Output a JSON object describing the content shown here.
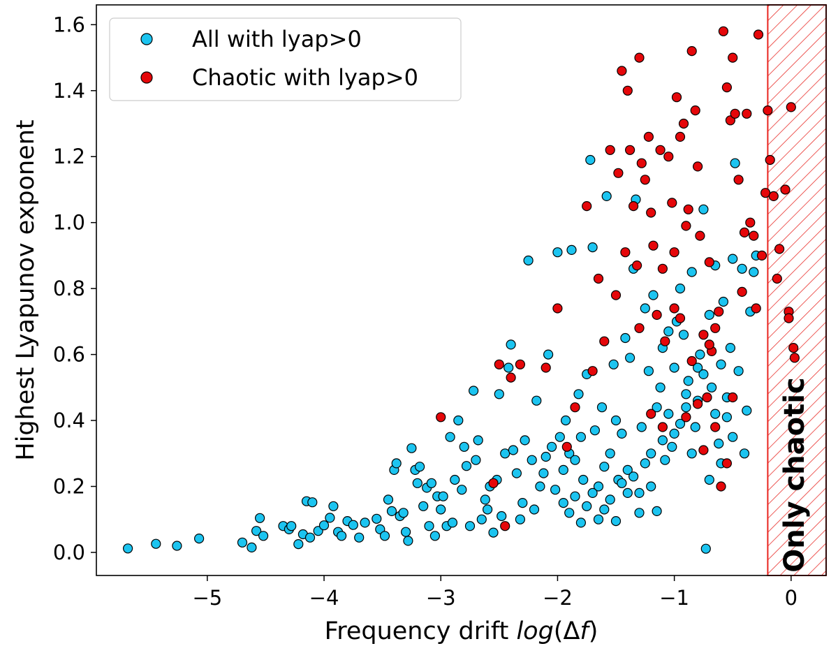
{
  "chart_data": {
    "type": "scatter",
    "xlabel_prefix": "Frequency drift ",
    "xlabel_math_italic": "log",
    "xlabel_math_rest": "(Δ",
    "xlabel_math_italic2": "f",
    "xlabel_math_close": ")",
    "ylabel": "Highest Lyapunov exponent",
    "xlim": [
      -5.95,
      0.3
    ],
    "ylim": [
      -0.07,
      1.66
    ],
    "grid": false,
    "legend_position": "top-left",
    "x_ticks": [
      {
        "value": -5,
        "label": "−5"
      },
      {
        "value": -4,
        "label": "−4"
      },
      {
        "value": -3,
        "label": "−3"
      },
      {
        "value": -2,
        "label": "−2"
      },
      {
        "value": -1,
        "label": "−1"
      },
      {
        "value": 0,
        "label": "0"
      }
    ],
    "y_ticks": [
      {
        "value": 0.0,
        "label": "0.0"
      },
      {
        "value": 0.2,
        "label": "0.2"
      },
      {
        "value": 0.4,
        "label": "0.4"
      },
      {
        "value": 0.6,
        "label": "0.6"
      },
      {
        "value": 0.8,
        "label": "0.8"
      },
      {
        "value": 1.0,
        "label": "1.0"
      },
      {
        "value": 1.2,
        "label": "1.2"
      },
      {
        "value": 1.4,
        "label": "1.4"
      },
      {
        "value": 1.6,
        "label": "1.6"
      }
    ],
    "shaded_region": {
      "label": "Only chaotic",
      "x_from": -0.2,
      "x_to": 0.3,
      "color": "#e8241f",
      "hatch": "diagonal"
    },
    "series": [
      {
        "name": "All with lyap>0",
        "color": "#1cc4f0",
        "points": [
          [
            -5.68,
            0.012
          ],
          [
            -5.44,
            0.026
          ],
          [
            -5.26,
            0.02
          ],
          [
            -5.07,
            0.042
          ],
          [
            -4.7,
            0.03
          ],
          [
            -4.62,
            0.015
          ],
          [
            -4.58,
            0.065
          ],
          [
            -4.55,
            0.104
          ],
          [
            -4.52,
            0.05
          ],
          [
            -4.35,
            0.08
          ],
          [
            -4.3,
            0.07
          ],
          [
            -4.28,
            0.08
          ],
          [
            -4.22,
            0.025
          ],
          [
            -4.18,
            0.055
          ],
          [
            -4.15,
            0.155
          ],
          [
            -4.12,
            0.045
          ],
          [
            -4.1,
            0.152
          ],
          [
            -4.05,
            0.065
          ],
          [
            -4.0,
            0.082
          ],
          [
            -3.95,
            0.105
          ],
          [
            -3.92,
            0.14
          ],
          [
            -3.88,
            0.062
          ],
          [
            -3.85,
            0.05
          ],
          [
            -3.8,
            0.095
          ],
          [
            -3.75,
            0.083
          ],
          [
            -3.7,
            0.045
          ],
          [
            -3.65,
            0.09
          ],
          [
            -3.55,
            0.102
          ],
          [
            -3.52,
            0.07
          ],
          [
            -3.48,
            0.05
          ],
          [
            -3.45,
            0.16
          ],
          [
            -3.42,
            0.125
          ],
          [
            -3.4,
            0.25
          ],
          [
            -3.38,
            0.27
          ],
          [
            -3.35,
            0.11
          ],
          [
            -3.32,
            0.12
          ],
          [
            -3.3,
            0.062
          ],
          [
            -3.28,
            0.035
          ],
          [
            -3.25,
            0.316
          ],
          [
            -3.22,
            0.25
          ],
          [
            -3.2,
            0.21
          ],
          [
            -3.18,
            0.26
          ],
          [
            -3.15,
            0.14
          ],
          [
            -3.12,
            0.196
          ],
          [
            -3.1,
            0.08
          ],
          [
            -3.08,
            0.21
          ],
          [
            -3.05,
            0.05
          ],
          [
            -3.03,
            0.17
          ],
          [
            -3.0,
            0.13
          ],
          [
            -2.98,
            0.17
          ],
          [
            -2.95,
            0.08
          ],
          [
            -2.92,
            0.35
          ],
          [
            -2.9,
            0.09
          ],
          [
            -2.88,
            0.22
          ],
          [
            -2.85,
            0.4
          ],
          [
            -2.82,
            0.19
          ],
          [
            -2.8,
            0.32
          ],
          [
            -2.78,
            0.262
          ],
          [
            -2.75,
            0.08
          ],
          [
            -2.72,
            0.49
          ],
          [
            -2.7,
            0.28
          ],
          [
            -2.68,
            0.34
          ],
          [
            -2.65,
            0.1
          ],
          [
            -2.62,
            0.16
          ],
          [
            -2.6,
            0.13
          ],
          [
            -2.58,
            0.2
          ],
          [
            -2.55,
            0.06
          ],
          [
            -2.52,
            0.22
          ],
          [
            -2.5,
            0.48
          ],
          [
            -2.48,
            0.11
          ],
          [
            -2.45,
            0.3
          ],
          [
            -2.42,
            0.56
          ],
          [
            -2.4,
            0.63
          ],
          [
            -2.38,
            0.31
          ],
          [
            -2.35,
            0.24
          ],
          [
            -2.32,
            0.1
          ],
          [
            -2.3,
            0.15
          ],
          [
            -2.28,
            0.34
          ],
          [
            -2.25,
            0.885
          ],
          [
            -2.22,
            0.28
          ],
          [
            -2.2,
            0.13
          ],
          [
            -2.18,
            0.46
          ],
          [
            -2.15,
            0.2
          ],
          [
            -2.12,
            0.24
          ],
          [
            -2.1,
            0.29
          ],
          [
            -2.08,
            0.6
          ],
          [
            -2.05,
            0.32
          ],
          [
            -2.02,
            0.19
          ],
          [
            -2.0,
            0.91
          ],
          [
            -1.98,
            0.35
          ],
          [
            -1.95,
            0.25
          ],
          [
            -1.93,
            0.4
          ],
          [
            -1.9,
            0.3
          ],
          [
            -1.88,
            0.917
          ],
          [
            -1.85,
            0.28
          ],
          [
            -1.82,
            0.48
          ],
          [
            -1.8,
            0.35
          ],
          [
            -1.78,
            0.22
          ],
          [
            -1.75,
            0.54
          ],
          [
            -1.72,
            1.19
          ],
          [
            -1.7,
            0.925
          ],
          [
            -1.68,
            0.37
          ],
          [
            -1.65,
            0.2
          ],
          [
            -1.62,
            0.44
          ],
          [
            -1.6,
            0.26
          ],
          [
            -1.58,
            1.08
          ],
          [
            -1.55,
            0.3
          ],
          [
            -1.52,
            0.57
          ],
          [
            -1.5,
            0.4
          ],
          [
            -1.48,
            0.22
          ],
          [
            -1.45,
            0.36
          ],
          [
            -1.42,
            0.65
          ],
          [
            -1.4,
            0.25
          ],
          [
            -1.38,
            0.59
          ],
          [
            -1.35,
            0.86
          ],
          [
            -1.33,
            1.07
          ],
          [
            -1.3,
            0.18
          ],
          [
            -1.28,
            0.38
          ],
          [
            -1.25,
            0.74
          ],
          [
            -1.22,
            0.55
          ],
          [
            -1.2,
            0.3
          ],
          [
            -1.18,
            0.78
          ],
          [
            -1.15,
            0.44
          ],
          [
            -1.12,
            0.5
          ],
          [
            -1.1,
            0.62
          ],
          [
            -1.08,
            0.28
          ],
          [
            -1.05,
            0.67
          ],
          [
            -1.02,
            0.32
          ],
          [
            -1.0,
            0.56
          ],
          [
            -0.98,
            0.7
          ],
          [
            -0.95,
            0.8
          ],
          [
            -0.92,
            0.66
          ],
          [
            -0.9,
            0.44
          ],
          [
            -0.88,
            0.52
          ],
          [
            -0.85,
            0.85
          ],
          [
            -0.82,
            0.38
          ],
          [
            -0.8,
            0.46
          ],
          [
            -0.78,
            0.6
          ],
          [
            -0.75,
            1.04
          ],
          [
            -0.73,
            0.011
          ],
          [
            -0.7,
            0.72
          ],
          [
            -0.68,
            0.5
          ],
          [
            -0.65,
            0.87
          ],
          [
            -0.62,
            0.33
          ],
          [
            -0.6,
            0.57
          ],
          [
            -0.58,
            0.76
          ],
          [
            -0.55,
            0.41
          ],
          [
            -0.52,
            0.62
          ],
          [
            -0.5,
            0.89
          ],
          [
            -0.48,
            1.18
          ],
          [
            -0.45,
            0.55
          ],
          [
            -0.42,
            0.86
          ],
          [
            -0.4,
            0.3
          ],
          [
            -0.38,
            0.43
          ],
          [
            -0.35,
            0.73
          ],
          [
            -0.32,
            0.85
          ],
          [
            -0.3,
            0.9
          ],
          [
            -1.95,
            0.15
          ],
          [
            -1.9,
            0.12
          ],
          [
            -1.85,
            0.17
          ],
          [
            -1.8,
            0.09
          ],
          [
            -1.75,
            0.14
          ],
          [
            -1.7,
            0.18
          ],
          [
            -1.65,
            0.1
          ],
          [
            -1.6,
            0.13
          ],
          [
            -1.55,
            0.16
          ],
          [
            -1.5,
            0.095
          ],
          [
            -1.45,
            0.21
          ],
          [
            -1.4,
            0.18
          ],
          [
            -1.35,
            0.23
          ],
          [
            -1.3,
            0.12
          ],
          [
            -1.25,
            0.27
          ],
          [
            -1.2,
            0.2
          ],
          [
            -1.15,
            0.125
          ],
          [
            -1.1,
            0.34
          ],
          [
            -1.05,
            0.42
          ],
          [
            -1.0,
            0.36
          ],
          [
            -0.95,
            0.39
          ],
          [
            -0.9,
            0.48
          ],
          [
            -0.85,
            0.3
          ],
          [
            -0.8,
            0.56
          ],
          [
            -0.75,
            0.54
          ],
          [
            -0.7,
            0.22
          ],
          [
            -0.65,
            0.42
          ],
          [
            -0.6,
            0.27
          ],
          [
            -0.55,
            0.47
          ],
          [
            -0.5,
            0.35
          ]
        ]
      },
      {
        "name": "Chaotic with lyap>0",
        "color": "#e5070a",
        "points": [
          [
            -3.0,
            0.41
          ],
          [
            -2.5,
            0.57
          ],
          [
            -2.4,
            0.53
          ],
          [
            -2.32,
            0.57
          ],
          [
            -2.1,
            0.56
          ],
          [
            -2.0,
            0.74
          ],
          [
            -1.92,
            0.32
          ],
          [
            -1.85,
            0.44
          ],
          [
            -1.75,
            1.05
          ],
          [
            -1.7,
            0.55
          ],
          [
            -1.65,
            0.83
          ],
          [
            -1.6,
            0.64
          ],
          [
            -1.55,
            1.22
          ],
          [
            -1.5,
            0.78
          ],
          [
            -1.48,
            1.15
          ],
          [
            -1.45,
            1.46
          ],
          [
            -1.42,
            0.91
          ],
          [
            -1.4,
            1.4
          ],
          [
            -1.38,
            1.22
          ],
          [
            -1.35,
            1.05
          ],
          [
            -1.32,
            0.87
          ],
          [
            -1.3,
            1.5
          ],
          [
            -1.28,
            1.18
          ],
          [
            -1.25,
            1.13
          ],
          [
            -1.22,
            1.26
          ],
          [
            -1.2,
            1.03
          ],
          [
            -1.18,
            0.93
          ],
          [
            -1.15,
            0.72
          ],
          [
            -1.12,
            1.22
          ],
          [
            -1.1,
            0.86
          ],
          [
            -1.08,
            0.64
          ],
          [
            -1.05,
            1.2
          ],
          [
            -1.02,
            1.06
          ],
          [
            -1.0,
            0.91
          ],
          [
            -0.98,
            1.38
          ],
          [
            -0.95,
            1.26
          ],
          [
            -0.92,
            1.3
          ],
          [
            -0.9,
            0.99
          ],
          [
            -0.88,
            1.04
          ],
          [
            -0.85,
            1.52
          ],
          [
            -0.82,
            1.34
          ],
          [
            -0.8,
            1.17
          ],
          [
            -0.78,
            0.96
          ],
          [
            -0.75,
            0.66
          ],
          [
            -0.72,
            0.47
          ],
          [
            -0.7,
            0.88
          ],
          [
            -0.68,
            0.61
          ],
          [
            -0.65,
            0.38
          ],
          [
            -0.62,
            0.73
          ],
          [
            -0.6,
            0.2
          ],
          [
            -0.58,
            1.58
          ],
          [
            -0.55,
            1.41
          ],
          [
            -0.52,
            1.31
          ],
          [
            -0.5,
            1.5
          ],
          [
            -0.48,
            1.33
          ],
          [
            -0.45,
            1.13
          ],
          [
            -0.42,
            0.79
          ],
          [
            -0.4,
            0.97
          ],
          [
            -0.38,
            1.33
          ],
          [
            -0.35,
            1.0
          ],
          [
            -0.32,
            0.96
          ],
          [
            -0.3,
            0.74
          ],
          [
            -0.28,
            1.57
          ],
          [
            -0.25,
            0.9
          ],
          [
            -0.22,
            1.09
          ],
          [
            -0.2,
            1.34
          ],
          [
            -0.18,
            1.19
          ],
          [
            -0.15,
            1.08
          ],
          [
            -0.12,
            0.83
          ],
          [
            -0.1,
            0.92
          ],
          [
            -0.05,
            1.1
          ],
          [
            -0.02,
            0.73
          ],
          [
            0.0,
            1.35
          ],
          [
            0.02,
            0.62
          ],
          [
            0.03,
            0.59
          ],
          [
            -0.02,
            0.71
          ],
          [
            -1.0,
            0.74
          ],
          [
            -0.95,
            0.71
          ],
          [
            -0.9,
            0.41
          ],
          [
            -0.85,
            0.58
          ],
          [
            -0.8,
            0.45
          ],
          [
            -0.75,
            0.31
          ],
          [
            -0.7,
            0.63
          ],
          [
            -0.65,
            0.68
          ],
          [
            -0.55,
            0.27
          ],
          [
            -0.5,
            0.47
          ],
          [
            -2.55,
            0.21
          ],
          [
            -2.45,
            0.08
          ],
          [
            -1.3,
            0.68
          ],
          [
            -1.2,
            0.42
          ],
          [
            -1.1,
            0.38
          ]
        ]
      }
    ]
  }
}
